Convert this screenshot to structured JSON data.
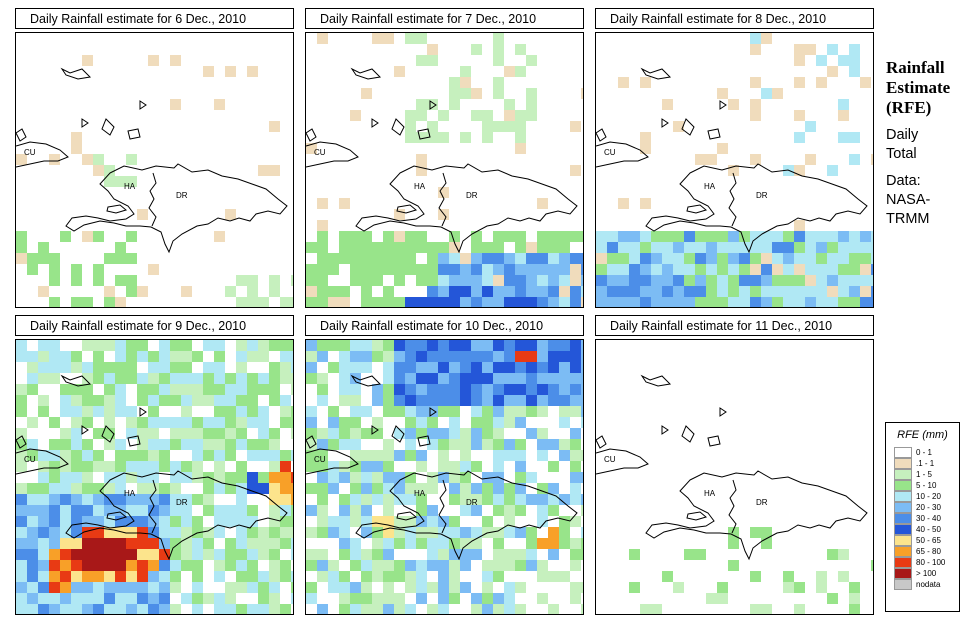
{
  "side": {
    "title_lines": [
      "Rainfall",
      "Estimate",
      "(RFE)"
    ],
    "desc_lines": [
      "Daily",
      "Total"
    ],
    "data_lines": [
      "Data:",
      "NASA-",
      "TRMM"
    ]
  },
  "labels": {
    "cu": "CU",
    "ha": "HA",
    "dr": "DR"
  },
  "legend": {
    "title": "RFE (mm)",
    "items": [
      {
        "label": "0 - 1",
        "color": "#ffffff"
      },
      {
        "label": ".1 - 1",
        "color": "#f0dcbc"
      },
      {
        "label": "1 - 5",
        "color": "#c6f0be"
      },
      {
        "label": "5 - 10",
        "color": "#98e48a"
      },
      {
        "label": "10 - 20",
        "color": "#b0e8f4"
      },
      {
        "label": "20 - 30",
        "color": "#7cbcf4"
      },
      {
        "label": "30 - 40",
        "color": "#4c8ee8"
      },
      {
        "label": "40 - 50",
        "color": "#2456d8"
      },
      {
        "label": "50 - 65",
        "color": "#fce48c"
      },
      {
        "label": "65 - 80",
        "color": "#f8a028"
      },
      {
        "label": "80 - 100",
        "color": "#e83a14"
      },
      {
        "label": "> 100",
        "color": "#a81818"
      },
      {
        "label": "nodata",
        "color": "#c8c8c8"
      }
    ]
  },
  "panels": [
    {
      "title": "Daily Rainfall estimate for  6 Dec., 2010",
      "intensity": 0
    },
    {
      "title": "Daily Rainfall estimate for  7 Dec., 2010",
      "intensity": 1
    },
    {
      "title": "Daily Rainfall estimate for  8 Dec., 2010",
      "intensity": 2
    },
    {
      "title": "Daily Rainfall estimate for  9 Dec., 2010",
      "intensity": 3
    },
    {
      "title": "Daily Rainfall estimate for  10 Dec., 2010",
      "intensity": 4
    },
    {
      "title": "Daily Rainfall estimate for  11 Dec., 2010",
      "intensity": 5
    }
  ]
}
